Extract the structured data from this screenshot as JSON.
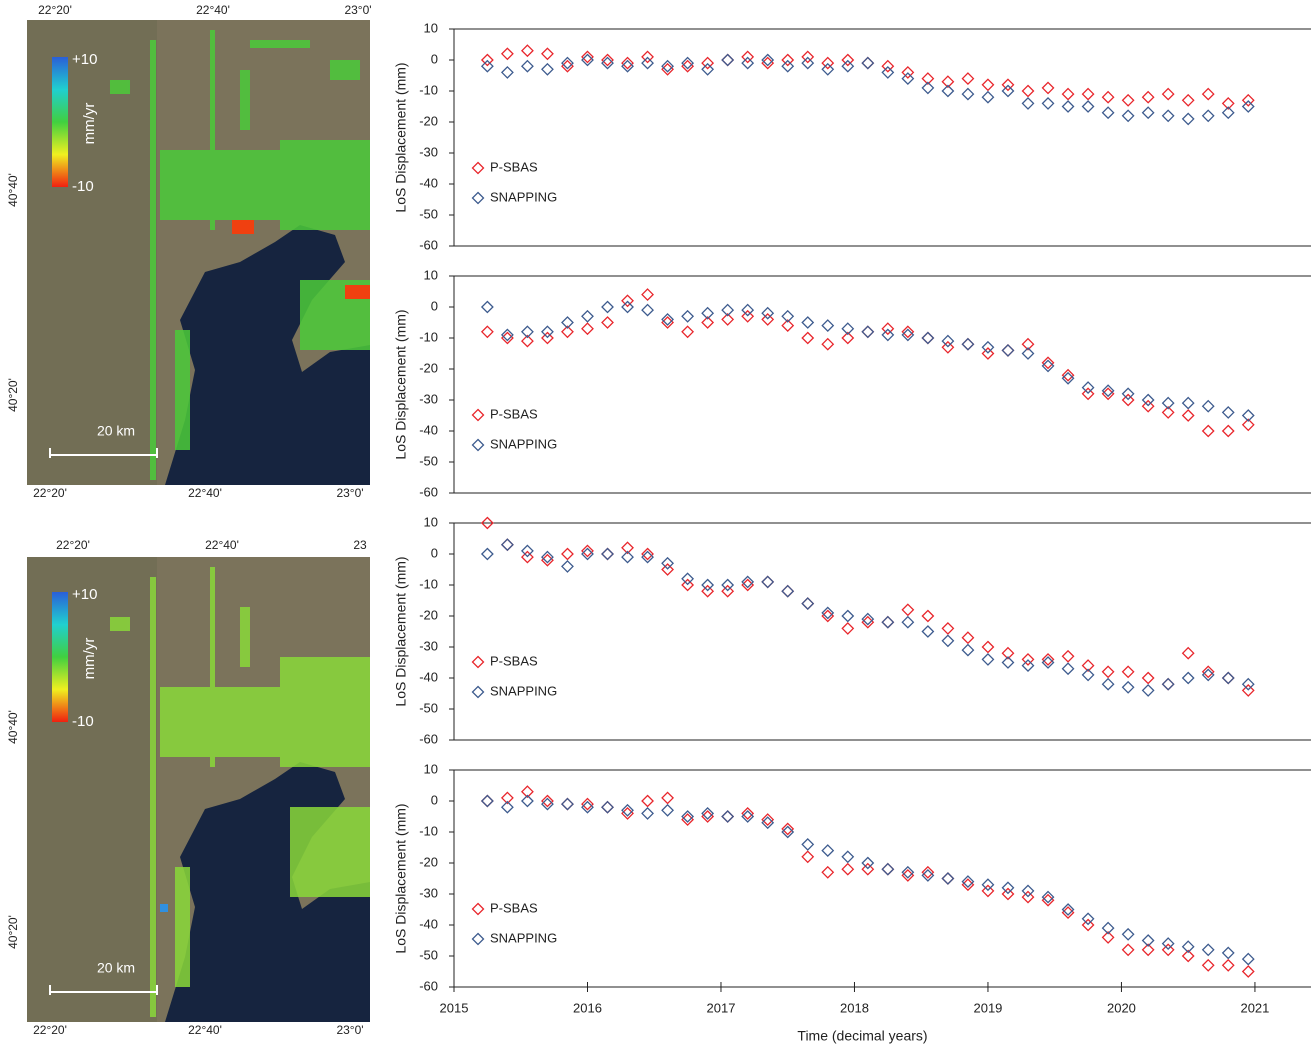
{
  "maps": [
    {
      "top_labels": [
        "22°20'",
        "22°40'",
        "23°0'"
      ],
      "left_labels": [
        "40°40'",
        "40°20'"
      ],
      "bottom_labels": [
        "22°20'",
        "22°40'",
        "23°0'"
      ],
      "colorbar_labels": [
        "+10",
        "-10"
      ],
      "colorbar_unit": "mm/yr",
      "scale_label": "20 km"
    },
    {
      "top_labels": [
        "22°20'",
        "22°40'",
        "23"
      ],
      "left_labels": [
        "40°40'",
        "40°20'"
      ],
      "bottom_labels": [
        "22°20'",
        "22°40'",
        "23°0'"
      ],
      "colorbar_labels": [
        "+10",
        "-10"
      ],
      "colorbar_unit": "mm/yr",
      "scale_label": "20 km"
    }
  ],
  "chart_data": [
    {
      "type": "scatter",
      "ylabel": "LoS Displacement (mm)",
      "xlim": [
        2015,
        2021.42
      ],
      "ylim": [
        -60,
        10
      ],
      "yticks": [
        -60,
        -50,
        -40,
        -30,
        -20,
        -10,
        0,
        10
      ],
      "legend": "lower left",
      "x": [
        2015.25,
        2015.4,
        2015.55,
        2015.7,
        2015.85,
        2016.0,
        2016.15,
        2016.3,
        2016.45,
        2016.6,
        2016.75,
        2016.9,
        2017.05,
        2017.2,
        2017.35,
        2017.5,
        2017.65,
        2017.8,
        2017.95,
        2018.1,
        2018.25,
        2018.4,
        2018.55,
        2018.7,
        2018.85,
        2019.0,
        2019.15,
        2019.3,
        2019.45,
        2019.6,
        2019.75,
        2019.9,
        2020.05,
        2020.2,
        2020.35,
        2020.5,
        2020.65,
        2020.8,
        2020.95
      ],
      "series": [
        {
          "name": "P-SBAS",
          "color": "#e8262c",
          "values": [
            0,
            2,
            3,
            2,
            -2,
            1,
            0,
            -1,
            1,
            -3,
            -2,
            -1,
            0,
            1,
            -1,
            0,
            1,
            -1,
            0,
            -1,
            -2,
            -4,
            -6,
            -7,
            -6,
            -8,
            -8,
            -10,
            -9,
            -11,
            -11,
            -12,
            -13,
            -12,
            -11,
            -13,
            -11,
            -14,
            -13
          ]
        },
        {
          "name": "SNAPPING",
          "color": "#3d5b8e",
          "values": [
            -2,
            -4,
            -2,
            -3,
            -1,
            0,
            -1,
            -2,
            -1,
            -2,
            -1,
            -3,
            0,
            -1,
            0,
            -2,
            -1,
            -3,
            -2,
            -1,
            -4,
            -6,
            -9,
            -10,
            -11,
            -12,
            -10,
            -14,
            -14,
            -15,
            -15,
            -17,
            -18,
            -17,
            -18,
            -19,
            -18,
            -17,
            -15
          ]
        }
      ]
    },
    {
      "type": "scatter",
      "ylabel": "LoS Displacement (mm)",
      "xlim": [
        2015,
        2021.42
      ],
      "ylim": [
        -60,
        10
      ],
      "yticks": [
        -60,
        -50,
        -40,
        -30,
        -20,
        -10,
        0,
        10
      ],
      "legend": "lower left",
      "x": [
        2015.25,
        2015.4,
        2015.55,
        2015.7,
        2015.85,
        2016.0,
        2016.15,
        2016.3,
        2016.45,
        2016.6,
        2016.75,
        2016.9,
        2017.05,
        2017.2,
        2017.35,
        2017.5,
        2017.65,
        2017.8,
        2017.95,
        2018.1,
        2018.25,
        2018.4,
        2018.55,
        2018.7,
        2018.85,
        2019.0,
        2019.15,
        2019.3,
        2019.45,
        2019.6,
        2019.75,
        2019.9,
        2020.05,
        2020.2,
        2020.35,
        2020.5,
        2020.65,
        2020.8,
        2020.95
      ],
      "series": [
        {
          "name": "P-SBAS",
          "color": "#e8262c",
          "values": [
            -8,
            -10,
            -11,
            -10,
            -8,
            -7,
            -5,
            2,
            4,
            -5,
            -8,
            -5,
            -4,
            -3,
            -4,
            -6,
            -10,
            -12,
            -10,
            -8,
            -7,
            -8,
            -10,
            -13,
            -12,
            -15,
            -14,
            -12,
            -18,
            -22,
            -28,
            -28,
            -30,
            -32,
            -34,
            -35,
            -40,
            -40,
            -38
          ]
        },
        {
          "name": "SNAPPING",
          "color": "#3d5b8e",
          "values": [
            0,
            -9,
            -8,
            -8,
            -5,
            -3,
            0,
            0,
            -1,
            -4,
            -3,
            -2,
            -1,
            -1,
            -2,
            -3,
            -5,
            -6,
            -7,
            -8,
            -9,
            -9,
            -10,
            -11,
            -12,
            -13,
            -14,
            -15,
            -19,
            -23,
            -26,
            -27,
            -28,
            -30,
            -31,
            -31,
            -32,
            -34,
            -35
          ]
        }
      ]
    },
    {
      "type": "scatter",
      "ylabel": "LoS Displacement (mm)",
      "xlim": [
        2015,
        2021.42
      ],
      "ylim": [
        -60,
        10
      ],
      "yticks": [
        -60,
        -50,
        -40,
        -30,
        -20,
        -10,
        0,
        10
      ],
      "legend": "lower left",
      "x": [
        2015.25,
        2015.4,
        2015.55,
        2015.7,
        2015.85,
        2016.0,
        2016.15,
        2016.3,
        2016.45,
        2016.6,
        2016.75,
        2016.9,
        2017.05,
        2017.2,
        2017.35,
        2017.5,
        2017.65,
        2017.8,
        2017.95,
        2018.1,
        2018.25,
        2018.4,
        2018.55,
        2018.7,
        2018.85,
        2019.0,
        2019.15,
        2019.3,
        2019.45,
        2019.6,
        2019.75,
        2019.9,
        2020.05,
        2020.2,
        2020.35,
        2020.5,
        2020.65,
        2020.8,
        2020.95
      ],
      "series": [
        {
          "name": "P-SBAS",
          "color": "#e8262c",
          "values": [
            10,
            3,
            -1,
            -2,
            0,
            1,
            0,
            2,
            0,
            -5,
            -10,
            -12,
            -12,
            -10,
            -9,
            -12,
            -16,
            -20,
            -24,
            -22,
            -22,
            -18,
            -20,
            -24,
            -27,
            -30,
            -32,
            -34,
            -34,
            -33,
            -36,
            -38,
            -38,
            -40,
            -42,
            -32,
            -38,
            -40,
            -44
          ]
        },
        {
          "name": "SNAPPING",
          "color": "#3d5b8e",
          "values": [
            0,
            3,
            1,
            -1,
            -4,
            0,
            0,
            -1,
            -1,
            -3,
            -8,
            -10,
            -10,
            -9,
            -9,
            -12,
            -16,
            -19,
            -20,
            -21,
            -22,
            -22,
            -25,
            -28,
            -31,
            -34,
            -35,
            -36,
            -35,
            -37,
            -39,
            -42,
            -43,
            -44,
            -42,
            -40,
            -39,
            -40,
            -42
          ]
        }
      ]
    },
    {
      "type": "scatter",
      "ylabel": "LoS Displacement (mm)",
      "xlabel": "Time (decimal years)",
      "xlim": [
        2015,
        2021.42
      ],
      "ylim": [
        -60,
        10
      ],
      "yticks": [
        -60,
        -50,
        -40,
        -30,
        -20,
        -10,
        0,
        10
      ],
      "xticks": [
        2015,
        2016,
        2017,
        2018,
        2019,
        2020,
        2021
      ],
      "legend": "lower left",
      "x": [
        2015.25,
        2015.4,
        2015.55,
        2015.7,
        2015.85,
        2016.0,
        2016.15,
        2016.3,
        2016.45,
        2016.6,
        2016.75,
        2016.9,
        2017.05,
        2017.2,
        2017.35,
        2017.5,
        2017.65,
        2017.8,
        2017.95,
        2018.1,
        2018.25,
        2018.4,
        2018.55,
        2018.7,
        2018.85,
        2019.0,
        2019.15,
        2019.3,
        2019.45,
        2019.6,
        2019.75,
        2019.9,
        2020.05,
        2020.2,
        2020.35,
        2020.5,
        2020.65,
        2020.8,
        2020.95
      ],
      "series": [
        {
          "name": "P-SBAS",
          "color": "#e8262c",
          "values": [
            0,
            1,
            3,
            0,
            -1,
            -1,
            -2,
            -4,
            0,
            1,
            -6,
            -5,
            -5,
            -4,
            -6,
            -9,
            -18,
            -23,
            -22,
            -22,
            -22,
            -24,
            -23,
            -25,
            -27,
            -29,
            -30,
            -31,
            -32,
            -36,
            -40,
            -44,
            -48,
            -48,
            -48,
            -50,
            -53,
            -53,
            -55
          ]
        },
        {
          "name": "SNAPPING",
          "color": "#3d5b8e",
          "values": [
            0,
            -2,
            0,
            -1,
            -1,
            -2,
            -2,
            -3,
            -4,
            -3,
            -5,
            -4,
            -5,
            -5,
            -7,
            -10,
            -14,
            -16,
            -18,
            -20,
            -22,
            -23,
            -24,
            -25,
            -26,
            -27,
            -28,
            -29,
            -31,
            -35,
            -38,
            -41,
            -43,
            -45,
            -46,
            -47,
            -48,
            -49,
            -51
          ]
        }
      ]
    }
  ]
}
